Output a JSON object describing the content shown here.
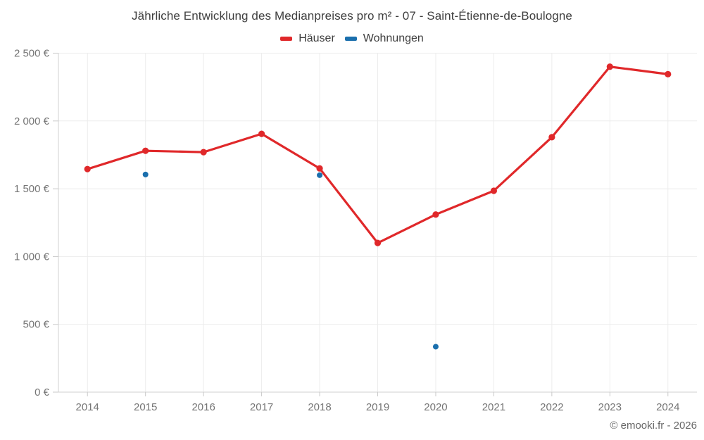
{
  "title": "Jährliche Entwicklung des Medianpreises pro m² - 07 - Saint-Étienne-de-Boulogne",
  "copyright": "© emooki.fr - 2026",
  "legend": [
    {
      "label": "Häuser",
      "color": "#e0282a"
    },
    {
      "label": "Wohnungen",
      "color": "#1a6fad"
    }
  ],
  "colors": {
    "grid": "#ececec",
    "axis": "#d2d2d2",
    "tick": "#c9c9c9",
    "axis_label": "#757575",
    "background": "#ffffff"
  },
  "chart_data": {
    "type": "line",
    "title": "Jährliche Entwicklung des Medianpreises pro m² - 07 - Saint-Étienne-de-Boulogne",
    "categories": [
      "2014",
      "2015",
      "2016",
      "2017",
      "2018",
      "2019",
      "2020",
      "2021",
      "2022",
      "2023",
      "2024"
    ],
    "series": [
      {
        "name": "Häuser",
        "color": "#e0282a",
        "style": "line+markers",
        "values": [
          1645,
          1780,
          1770,
          1905,
          1650,
          1100,
          1310,
          1485,
          1880,
          2400,
          2345
        ]
      },
      {
        "name": "Wohnungen",
        "color": "#1a6fad",
        "style": "markers",
        "values": [
          null,
          1605,
          null,
          null,
          1600,
          null,
          335,
          null,
          null,
          null,
          null
        ]
      }
    ],
    "xlabel": "",
    "ylabel": "",
    "ylim": [
      0,
      2500
    ],
    "yticks": [
      0,
      500,
      1000,
      1500,
      2000,
      2500
    ],
    "ytick_labels": [
      "0 €",
      "500 €",
      "1 000 €",
      "1 500 €",
      "2 000 €",
      "2 500 €"
    ],
    "grid": true,
    "legend_position": "top"
  }
}
